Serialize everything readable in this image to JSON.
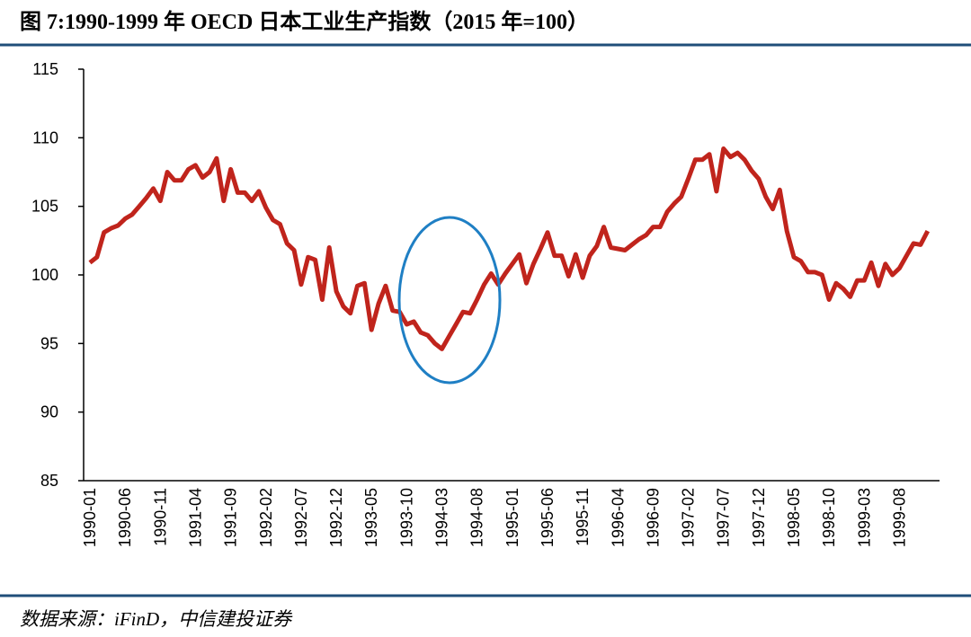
{
  "chart_data": {
    "type": "line",
    "title": "图 7:1990-1999 年 OECD 日本工业生产指数（2015 年=100）",
    "source": "数据来源：iFinD，中信建投证券",
    "color": "#c0241c",
    "categories": [
      "1990-01",
      null,
      null,
      null,
      null,
      "1990-06",
      null,
      null,
      null,
      null,
      "1990-11",
      null,
      null,
      null,
      null,
      "1991-04",
      null,
      null,
      null,
      null,
      "1991-09",
      null,
      null,
      null,
      null,
      "1992-02",
      null,
      null,
      null,
      null,
      "1992-07",
      null,
      null,
      null,
      null,
      "1992-12",
      null,
      null,
      null,
      null,
      "1993-05",
      null,
      null,
      null,
      null,
      "1993-10",
      null,
      null,
      null,
      null,
      "1994-03",
      null,
      null,
      null,
      null,
      "1994-08",
      null,
      null,
      null,
      null,
      "1995-01",
      null,
      null,
      null,
      null,
      "1995-06",
      null,
      null,
      null,
      null,
      "1995-11",
      null,
      null,
      null,
      null,
      "1996-04",
      null,
      null,
      null,
      null,
      "1996-09",
      null,
      null,
      null,
      null,
      "1997-02",
      null,
      null,
      null,
      null,
      "1997-07",
      null,
      null,
      null,
      null,
      "1997-12",
      null,
      null,
      null,
      null,
      "1998-05",
      null,
      null,
      null,
      null,
      "1998-10",
      null,
      null,
      null,
      null,
      "1999-03",
      null,
      null,
      null,
      null,
      "1999-08",
      null,
      null,
      null,
      null
    ],
    "values": [
      100.9,
      101.3,
      103.1,
      103.4,
      103.6,
      104.1,
      104.4,
      105.0,
      105.6,
      106.3,
      105.4,
      107.5,
      106.9,
      106.9,
      107.7,
      108.0,
      107.1,
      107.5,
      108.5,
      105.4,
      107.7,
      106.0,
      106.0,
      105.4,
      106.1,
      104.9,
      104.0,
      103.7,
      102.3,
      101.8,
      99.3,
      101.3,
      101.1,
      98.2,
      102.0,
      98.8,
      97.7,
      97.2,
      99.2,
      99.4,
      96.0,
      97.9,
      99.2,
      97.4,
      97.3,
      96.4,
      96.6,
      95.8,
      95.6,
      95.0,
      94.6,
      95.5,
      96.4,
      97.3,
      97.2,
      98.2,
      99.3,
      100.1,
      99.3,
      100.1,
      100.8,
      101.5,
      99.4,
      100.8,
      101.9,
      103.1,
      101.4,
      101.4,
      99.9,
      101.5,
      99.8,
      101.4,
      102.1,
      103.5,
      102.0,
      101.9,
      101.8,
      102.2,
      102.6,
      102.9,
      103.5,
      103.5,
      104.6,
      105.2,
      105.7,
      107.0,
      108.4,
      108.4,
      108.8,
      106.1,
      109.2,
      108.6,
      108.9,
      108.4,
      107.6,
      107.0,
      105.7,
      104.8,
      106.2,
      103.2,
      101.3,
      101.0,
      100.2,
      100.2,
      100.0,
      98.2,
      99.4,
      99.0,
      98.4,
      99.6,
      99.6,
      100.9,
      99.2,
      100.8,
      100.0,
      100.5,
      101.4,
      102.3,
      102.2,
      103.2
    ],
    "ylim": [
      85,
      115
    ],
    "yticks": [
      85,
      90,
      95,
      100,
      105,
      110,
      115
    ],
    "grid": false
  }
}
